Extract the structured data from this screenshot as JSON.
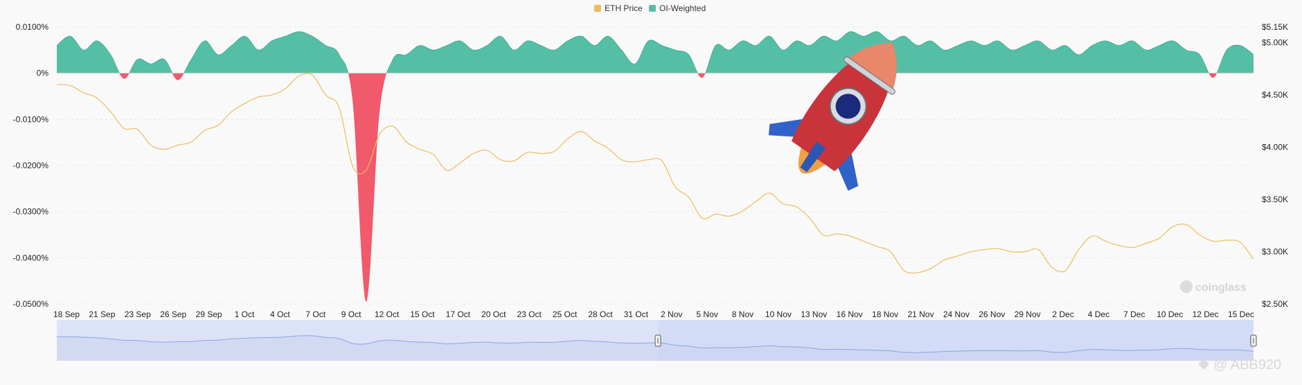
{
  "colors": {
    "eth_price": "#ecbd5a",
    "oi_positive": "#55bfa5",
    "oi_negative": "#f05a6b",
    "navigator_line": "#8aa2e6",
    "navigator_fill": "#dde3f7",
    "navigator_selected": "#d3dcf6"
  },
  "watermark": {
    "brand": "coinglass",
    "user": "@ ABB920"
  },
  "chart_data": {
    "type": "line",
    "legend": {
      "position": "top-center",
      "entries": [
        "ETH Price",
        "OI-Weighted"
      ]
    },
    "x_start": "2025-09-18",
    "x_end": "2025-12-16",
    "x_tick_labels": [
      "18 Sep",
      "21 Sep",
      "23 Sep",
      "26 Sep",
      "29 Sep",
      "1 Oct",
      "4 Oct",
      "7 Oct",
      "9 Oct",
      "12 Oct",
      "15 Oct",
      "17 Oct",
      "20 Oct",
      "23 Oct",
      "25 Oct",
      "28 Oct",
      "31 Oct",
      "2 Nov",
      "5 Nov",
      "8 Nov",
      "10 Nov",
      "13 Nov",
      "16 Nov",
      "18 Nov",
      "21 Nov",
      "24 Nov",
      "26 Nov",
      "29 Nov",
      "2 Dec",
      "4 Dec",
      "7 Dec",
      "10 Dec",
      "12 Dec",
      "15 Dec"
    ],
    "y_left": {
      "label": "",
      "ticks": [
        "0.0100%",
        "0%",
        "-0.0100%",
        "-0.0200%",
        "-0.0300%",
        "-0.0400%",
        "-0.0500%"
      ],
      "range": [
        -0.05,
        0.01
      ]
    },
    "y_right": {
      "label": "",
      "ticks": [
        "$5.15K",
        "$5.00K",
        "$4.50K",
        "$4.00K",
        "$3.50K",
        "$3.00K",
        "$2.50K"
      ],
      "range": [
        2500,
        5150
      ]
    },
    "grid": "horizontal-dashed",
    "series": [
      {
        "name": "ETH Price",
        "axis": "right",
        "x": [
          "2025-09-18",
          "2025-09-19",
          "2025-09-20",
          "2025-09-21",
          "2025-09-22",
          "2025-09-23",
          "2025-09-24",
          "2025-09-25",
          "2025-09-26",
          "2025-09-27",
          "2025-09-28",
          "2025-09-29",
          "2025-09-30",
          "2025-10-01",
          "2025-10-02",
          "2025-10-03",
          "2025-10-04",
          "2025-10-05",
          "2025-10-06",
          "2025-10-07",
          "2025-10-08",
          "2025-10-09",
          "2025-10-10",
          "2025-10-11",
          "2025-10-12",
          "2025-10-13",
          "2025-10-14",
          "2025-10-15",
          "2025-10-16",
          "2025-10-17",
          "2025-10-18",
          "2025-10-19",
          "2025-10-20",
          "2025-10-21",
          "2025-10-22",
          "2025-10-23",
          "2025-10-24",
          "2025-10-25",
          "2025-10-26",
          "2025-10-27",
          "2025-10-28",
          "2025-10-29",
          "2025-10-30",
          "2025-10-31",
          "2025-11-01",
          "2025-11-02",
          "2025-11-03",
          "2025-11-04",
          "2025-11-05",
          "2025-11-06",
          "2025-11-07",
          "2025-11-08",
          "2025-11-09",
          "2025-11-10",
          "2025-11-11",
          "2025-11-12",
          "2025-11-13",
          "2025-11-14",
          "2025-11-15",
          "2025-11-16",
          "2025-11-17",
          "2025-11-18",
          "2025-11-19",
          "2025-11-20",
          "2025-11-21",
          "2025-11-22",
          "2025-11-23",
          "2025-11-24",
          "2025-11-25",
          "2025-11-26",
          "2025-11-27",
          "2025-11-28",
          "2025-11-29",
          "2025-11-30",
          "2025-12-01",
          "2025-12-02",
          "2025-12-03",
          "2025-12-04",
          "2025-12-05",
          "2025-12-06",
          "2025-12-07",
          "2025-12-08",
          "2025-12-09",
          "2025-12-10",
          "2025-12-11",
          "2025-12-12",
          "2025-12-13",
          "2025-12-14",
          "2025-12-15",
          "2025-12-16"
        ],
        "values": [
          4600,
          4590,
          4520,
          4470,
          4340,
          4180,
          4170,
          4020,
          3980,
          4020,
          4050,
          4160,
          4210,
          4340,
          4420,
          4480,
          4500,
          4560,
          4680,
          4690,
          4500,
          4380,
          3820,
          3780,
          4120,
          4200,
          4050,
          3980,
          3930,
          3780,
          3850,
          3940,
          3970,
          3880,
          3870,
          3950,
          3940,
          3960,
          4080,
          4150,
          4060,
          3990,
          3880,
          3860,
          3880,
          3870,
          3620,
          3520,
          3320,
          3360,
          3340,
          3390,
          3480,
          3560,
          3460,
          3430,
          3320,
          3160,
          3170,
          3150,
          3100,
          3050,
          3000,
          2820,
          2800,
          2840,
          2920,
          2960,
          3000,
          3020,
          3030,
          3000,
          3000,
          3020,
          2850,
          2820,
          3020,
          3150,
          3100,
          3060,
          3040,
          3080,
          3130,
          3240,
          3260,
          3160,
          3100,
          3110,
          3090,
          2930
        ]
      },
      {
        "name": "OI-Weighted",
        "axis": "left",
        "x": [
          "2025-09-18",
          "2025-09-19",
          "2025-09-20",
          "2025-09-21",
          "2025-09-22",
          "2025-09-23",
          "2025-09-24",
          "2025-09-25",
          "2025-09-26",
          "2025-09-27",
          "2025-09-28",
          "2025-09-29",
          "2025-09-30",
          "2025-10-01",
          "2025-10-02",
          "2025-10-03",
          "2025-10-04",
          "2025-10-05",
          "2025-10-06",
          "2025-10-07",
          "2025-10-08",
          "2025-10-09",
          "2025-10-10",
          "2025-10-11",
          "2025-10-12",
          "2025-10-13",
          "2025-10-14",
          "2025-10-15",
          "2025-10-16",
          "2025-10-17",
          "2025-10-18",
          "2025-10-19",
          "2025-10-20",
          "2025-10-21",
          "2025-10-22",
          "2025-10-23",
          "2025-10-24",
          "2025-10-25",
          "2025-10-26",
          "2025-10-27",
          "2025-10-28",
          "2025-10-29",
          "2025-10-30",
          "2025-10-31",
          "2025-11-01",
          "2025-11-02",
          "2025-11-03",
          "2025-11-04",
          "2025-11-05",
          "2025-11-06",
          "2025-11-07",
          "2025-11-08",
          "2025-11-09",
          "2025-11-10",
          "2025-11-11",
          "2025-11-12",
          "2025-11-13",
          "2025-11-14",
          "2025-11-15",
          "2025-11-16",
          "2025-11-17",
          "2025-11-18",
          "2025-11-19",
          "2025-11-20",
          "2025-11-21",
          "2025-11-22",
          "2025-11-23",
          "2025-11-24",
          "2025-11-25",
          "2025-11-26",
          "2025-11-27",
          "2025-11-28",
          "2025-11-29",
          "2025-11-30",
          "2025-12-01",
          "2025-12-02",
          "2025-12-03",
          "2025-12-04",
          "2025-12-05",
          "2025-12-06",
          "2025-12-07",
          "2025-12-08",
          "2025-12-09",
          "2025-12-10",
          "2025-12-11",
          "2025-12-12",
          "2025-12-13",
          "2025-12-14",
          "2025-12-15",
          "2025-12-16"
        ],
        "values": [
          0.006,
          0.008,
          0.005,
          0.007,
          0.004,
          -0.0012,
          0.003,
          0.002,
          0.003,
          -0.0015,
          0.003,
          0.007,
          0.004,
          0.006,
          0.008,
          0.005,
          0.007,
          0.008,
          0.009,
          0.008,
          0.006,
          0.004,
          -0.006,
          -0.0495,
          -0.0085,
          0.003,
          0.004,
          0.006,
          0.005,
          0.006,
          0.007,
          0.005,
          0.006,
          0.008,
          0.005,
          0.007,
          0.006,
          0.005,
          0.007,
          0.008,
          0.006,
          0.008,
          0.005,
          0.002,
          0.007,
          0.006,
          0.005,
          0.004,
          -0.001,
          0.006,
          0.005,
          0.007,
          0.006,
          0.008,
          0.005,
          0.007,
          0.006,
          0.008,
          0.007,
          0.009,
          0.008,
          0.009,
          0.007,
          0.008,
          0.006,
          0.007,
          0.005,
          0.006,
          0.007,
          0.006,
          0.007,
          0.005,
          0.006,
          0.007,
          0.005,
          0.006,
          0.004,
          0.006,
          0.007,
          0.006,
          0.007,
          0.005,
          0.006,
          0.007,
          0.005,
          0.004,
          -0.001,
          0.005,
          0.006,
          0.004
        ]
      }
    ]
  }
}
